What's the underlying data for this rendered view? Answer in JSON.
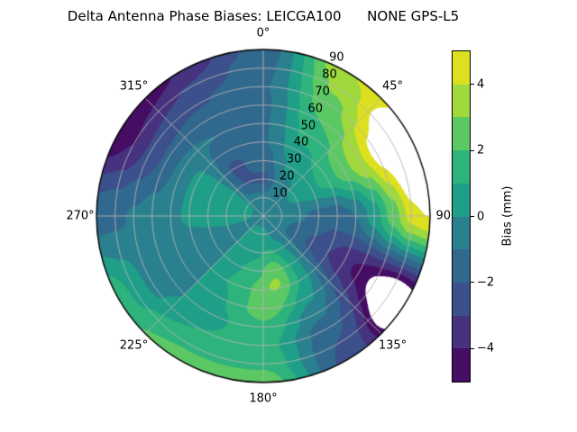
{
  "title": "Delta Antenna Phase Biases: LEICGA100      NONE GPS-L5",
  "chart_data": {
    "type": "heatmap",
    "subtype": "polar_filled_contour",
    "title": "Delta Antenna Phase Biases: LEICGA100      NONE GPS-L5",
    "grid_on": true,
    "grid_color": "#b3b3b3",
    "outline_color": "#000000",
    "background_color": "#ffffff",
    "azimuth_ticks": [
      {
        "angle_deg": 0,
        "label": "0°"
      },
      {
        "angle_deg": 45,
        "label": "45°"
      },
      {
        "angle_deg": 90,
        "label": "90°"
      },
      {
        "angle_deg": 135,
        "label": "135°"
      },
      {
        "angle_deg": 180,
        "label": "180°"
      },
      {
        "angle_deg": 225,
        "label": "225°"
      },
      {
        "angle_deg": 270,
        "label": "270°"
      },
      {
        "angle_deg": 315,
        "label": "315°"
      }
    ],
    "radial_ticks": [
      {
        "value": 10,
        "label": "10"
      },
      {
        "value": 20,
        "label": "20"
      },
      {
        "value": 30,
        "label": "30"
      },
      {
        "value": 40,
        "label": "40"
      },
      {
        "value": 50,
        "label": "50"
      },
      {
        "value": 60,
        "label": "60"
      },
      {
        "value": 70,
        "label": "70"
      },
      {
        "value": 80,
        "label": "80"
      },
      {
        "value": 90,
        "label": "90"
      }
    ],
    "radial_label_angle_deg": 22.5,
    "rmax": 90,
    "colorbar": {
      "label": "Bias (mm)",
      "range": [
        -5,
        5
      ],
      "ticks": [
        {
          "value": 4,
          "label": "4"
        },
        {
          "value": 2,
          "label": "2"
        },
        {
          "value": 0,
          "label": "0"
        },
        {
          "value": -2,
          "label": "−2"
        },
        {
          "value": -4,
          "label": "−4"
        }
      ],
      "band_levels": [
        -5,
        -4,
        -3,
        -2,
        -1,
        0,
        1,
        2,
        3,
        4,
        5
      ],
      "band_colors": [
        "#450d63",
        "#46327e",
        "#3c508b",
        "#31688e",
        "#2a808e",
        "#1f9f88",
        "#2eb37c",
        "#5cc863",
        "#a0d93c",
        "#dde01f"
      ],
      "out_of_range_color": "#ffffff"
    },
    "field": {
      "units": "mm",
      "azimuths_deg": [
        0,
        30,
        60,
        90,
        120,
        150,
        180,
        210,
        240,
        270,
        300,
        330
      ],
      "zeniths_deg": [
        0,
        10,
        20,
        30,
        40,
        50,
        60,
        70,
        80,
        90
      ],
      "bias_values": [
        [
          -0.5,
          -0.8,
          -2.2,
          -1.5,
          -1.1,
          -1.1,
          -1.2,
          -1.1,
          -1.3,
          -1.6
        ],
        [
          -0.5,
          -0.4,
          -0.2,
          0.2,
          0.8,
          1.4,
          2.0,
          2.6,
          3.2,
          3.9
        ],
        [
          -0.5,
          -0.3,
          0.2,
          0.8,
          1.5,
          2.6,
          3.8,
          5.2,
          5.6,
          4.4
        ],
        [
          -0.5,
          -0.6,
          -0.9,
          -1.3,
          -1.6,
          -1.0,
          0.5,
          2.4,
          4.0,
          4.5
        ],
        [
          -0.5,
          -0.8,
          -1.4,
          -2.2,
          -3.0,
          -3.7,
          -4.2,
          -4.5,
          -4.8,
          -4.7
        ],
        [
          -0.5,
          -0.3,
          0.0,
          0.3,
          0.4,
          0.0,
          -0.8,
          -1.6,
          -2.0,
          -2.2
        ],
        [
          -0.5,
          0.2,
          0.8,
          1.5,
          2.2,
          2.4,
          1.8,
          1.4,
          1.8,
          2.6
        ],
        [
          -0.5,
          0.3,
          0.6,
          0.9,
          1.0,
          0.8,
          0.6,
          1.0,
          1.8,
          2.6
        ],
        [
          -0.5,
          -0.2,
          -0.5,
          -0.8,
          -0.9,
          -0.8,
          -0.6,
          -0.3,
          0.8,
          1.6
        ],
        [
          -0.5,
          0.2,
          0.5,
          0.4,
          0.2,
          -0.3,
          -0.6,
          -0.9,
          -1.2,
          -1.4
        ],
        [
          -0.5,
          0.3,
          0.6,
          0.5,
          0.2,
          -0.6,
          -1.8,
          -2.8,
          -4.0,
          -4.7
        ],
        [
          -0.5,
          -0.6,
          -2.0,
          -2.2,
          -1.6,
          -1.0,
          -1.5,
          -2.1,
          -2.9,
          -3.7
        ]
      ],
      "hotspots": [
        {
          "azimuth_deg": 68,
          "zenith_deg": 86,
          "sigma_az_deg": 18,
          "sigma_zen_deg": 11,
          "amplitude_mm": 2.5
        },
        {
          "azimuth_deg": 124,
          "zenith_deg": 80,
          "sigma_az_deg": 8,
          "sigma_zen_deg": 12,
          "amplitude_mm": -2.2
        },
        {
          "azimuth_deg": 130,
          "zenith_deg": 86,
          "sigma_az_deg": 10,
          "sigma_zen_deg": 10,
          "amplitude_mm": -1.2
        },
        {
          "azimuth_deg": 165,
          "zenith_deg": 34,
          "sigma_az_deg": 14,
          "sigma_zen_deg": 14,
          "amplitude_mm": 1.8
        },
        {
          "azimuth_deg": 315,
          "zenith_deg": 90,
          "sigma_az_deg": 12,
          "sigma_zen_deg": 8,
          "amplitude_mm": -0.6
        }
      ]
    }
  }
}
